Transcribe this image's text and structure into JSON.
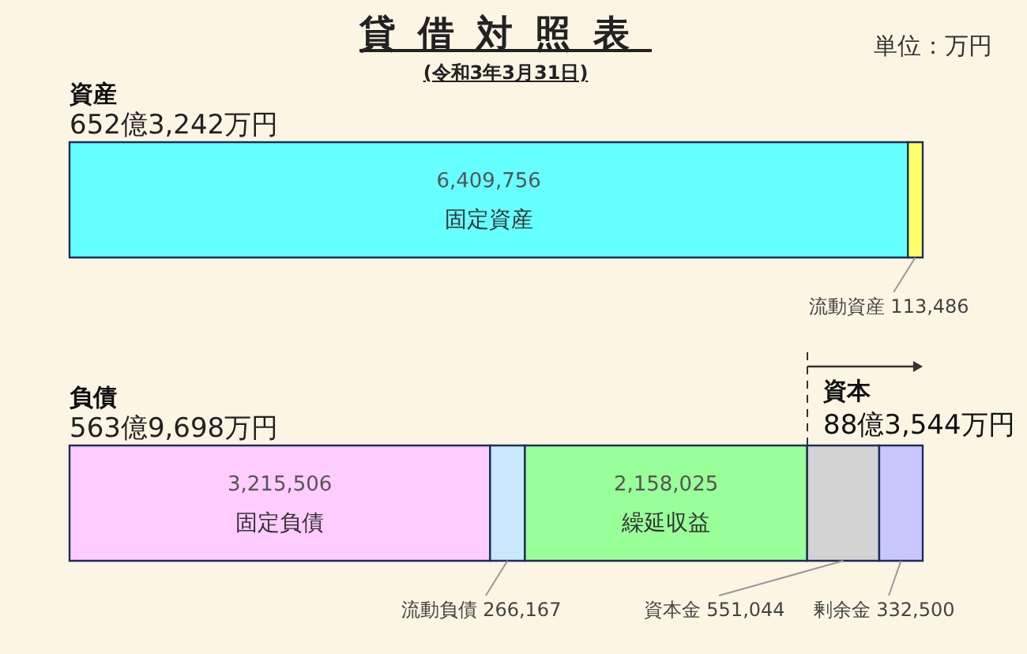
{
  "chart_data": {
    "type": "bar",
    "title": "貸借対照表",
    "subtitle": "(令和3年3月31日)",
    "orientation": "horizontal",
    "stacked": true,
    "tick_labels": "y",
    "categories": [
      "資産",
      "負債"
    ],
    "xlim": [
      0,
      6523242
    ],
    "series": [
      {
        "name": "固定資産",
        "color": "#66ffff",
        "values": [
          6409756,
          null
        ],
        "value_labels": [
          "6,409,756",
          null
        ]
      },
      {
        "name": "流動資産",
        "color": "#ffff66",
        "values": [
          113486,
          null
        ],
        "value_labels": [
          "113,486",
          null
        ]
      },
      {
        "name": "固定負債",
        "color": "#ffccff",
        "values": [
          null,
          3215506
        ],
        "value_labels": [
          null,
          "3,215,506"
        ]
      },
      {
        "name": "流動負債",
        "color": "#cce8ff",
        "values": [
          null,
          266167
        ],
        "value_labels": [
          null,
          "266,167"
        ]
      },
      {
        "name": "繰延収益",
        "color": "#99ff99",
        "values": [
          null,
          2158025
        ],
        "value_labels": [
          null,
          "2,158,025"
        ]
      },
      {
        "name": "資本金",
        "color": "#d3d3d3",
        "values": [
          null,
          551044
        ],
        "value_labels": [
          null,
          "551,044"
        ]
      },
      {
        "name": "剰余金",
        "color": "#c8c8ff",
        "values": [
          null,
          332500
        ],
        "value_labels": [
          null,
          "332,500"
        ]
      }
    ],
    "totals": [
      "652億3,242万円",
      "563億9,698万円"
    ],
    "annotations": [
      "資本",
      "88億3,544万円",
      "単位：万円"
    ]
  }
}
